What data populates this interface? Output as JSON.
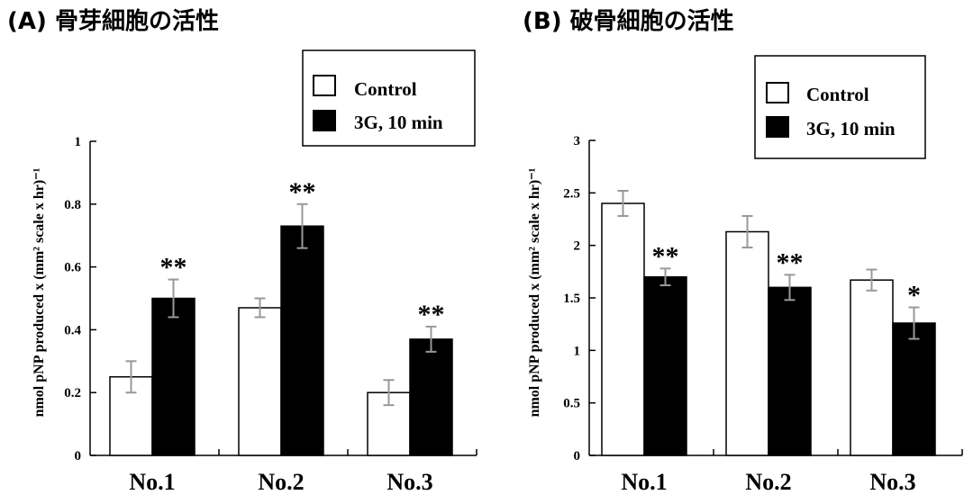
{
  "colors": {
    "control": "#ffffff",
    "treatment": "#000000",
    "error_bar": "#999999",
    "axis": "#000000"
  },
  "legend": {
    "control_label": "Control",
    "treatment_label": "3G, 10 min"
  },
  "chart_data": [
    {
      "type": "bar",
      "title": "(A) 骨芽細胞の活性",
      "ylabel": "nmol pNP produced x (mm² scale x hr)⁻¹",
      "ylim": [
        0,
        1
      ],
      "yticks": [
        "0",
        "0.2",
        "0.4",
        "0.6",
        "0.8",
        "1"
      ],
      "ytick_values": [
        0,
        0.2,
        0.4,
        0.6,
        0.8,
        1
      ],
      "categories": [
        "No.1",
        "No.2",
        "No.3"
      ],
      "series": [
        {
          "name": "Control",
          "values": [
            0.25,
            0.47,
            0.2
          ],
          "errors": [
            0.05,
            0.03,
            0.04
          ]
        },
        {
          "name": "3G, 10 min",
          "values": [
            0.5,
            0.73,
            0.37
          ],
          "errors": [
            0.06,
            0.07,
            0.04
          ]
        }
      ],
      "significance": [
        "**",
        "**",
        "**"
      ],
      "legend_position": "top-right"
    },
    {
      "type": "bar",
      "title": "(B) 破骨細胞の活性",
      "ylabel": "nmol pNP produced x (mm² scale x hr)⁻¹",
      "ylim": [
        0,
        3
      ],
      "yticks": [
        "0",
        "0.5",
        "1",
        "1.5",
        "2",
        "2.5",
        "3"
      ],
      "ytick_values": [
        0,
        0.5,
        1,
        1.5,
        2,
        2.5,
        3
      ],
      "categories": [
        "No.1",
        "No.2",
        "No.3"
      ],
      "series": [
        {
          "name": "Control",
          "values": [
            2.4,
            2.13,
            1.67
          ],
          "errors": [
            0.12,
            0.15,
            0.1
          ]
        },
        {
          "name": "3G, 10 min",
          "values": [
            1.7,
            1.6,
            1.26
          ],
          "errors": [
            0.08,
            0.12,
            0.15
          ]
        }
      ],
      "significance": [
        "**",
        "**",
        "*"
      ],
      "legend_position": "top-right"
    }
  ]
}
